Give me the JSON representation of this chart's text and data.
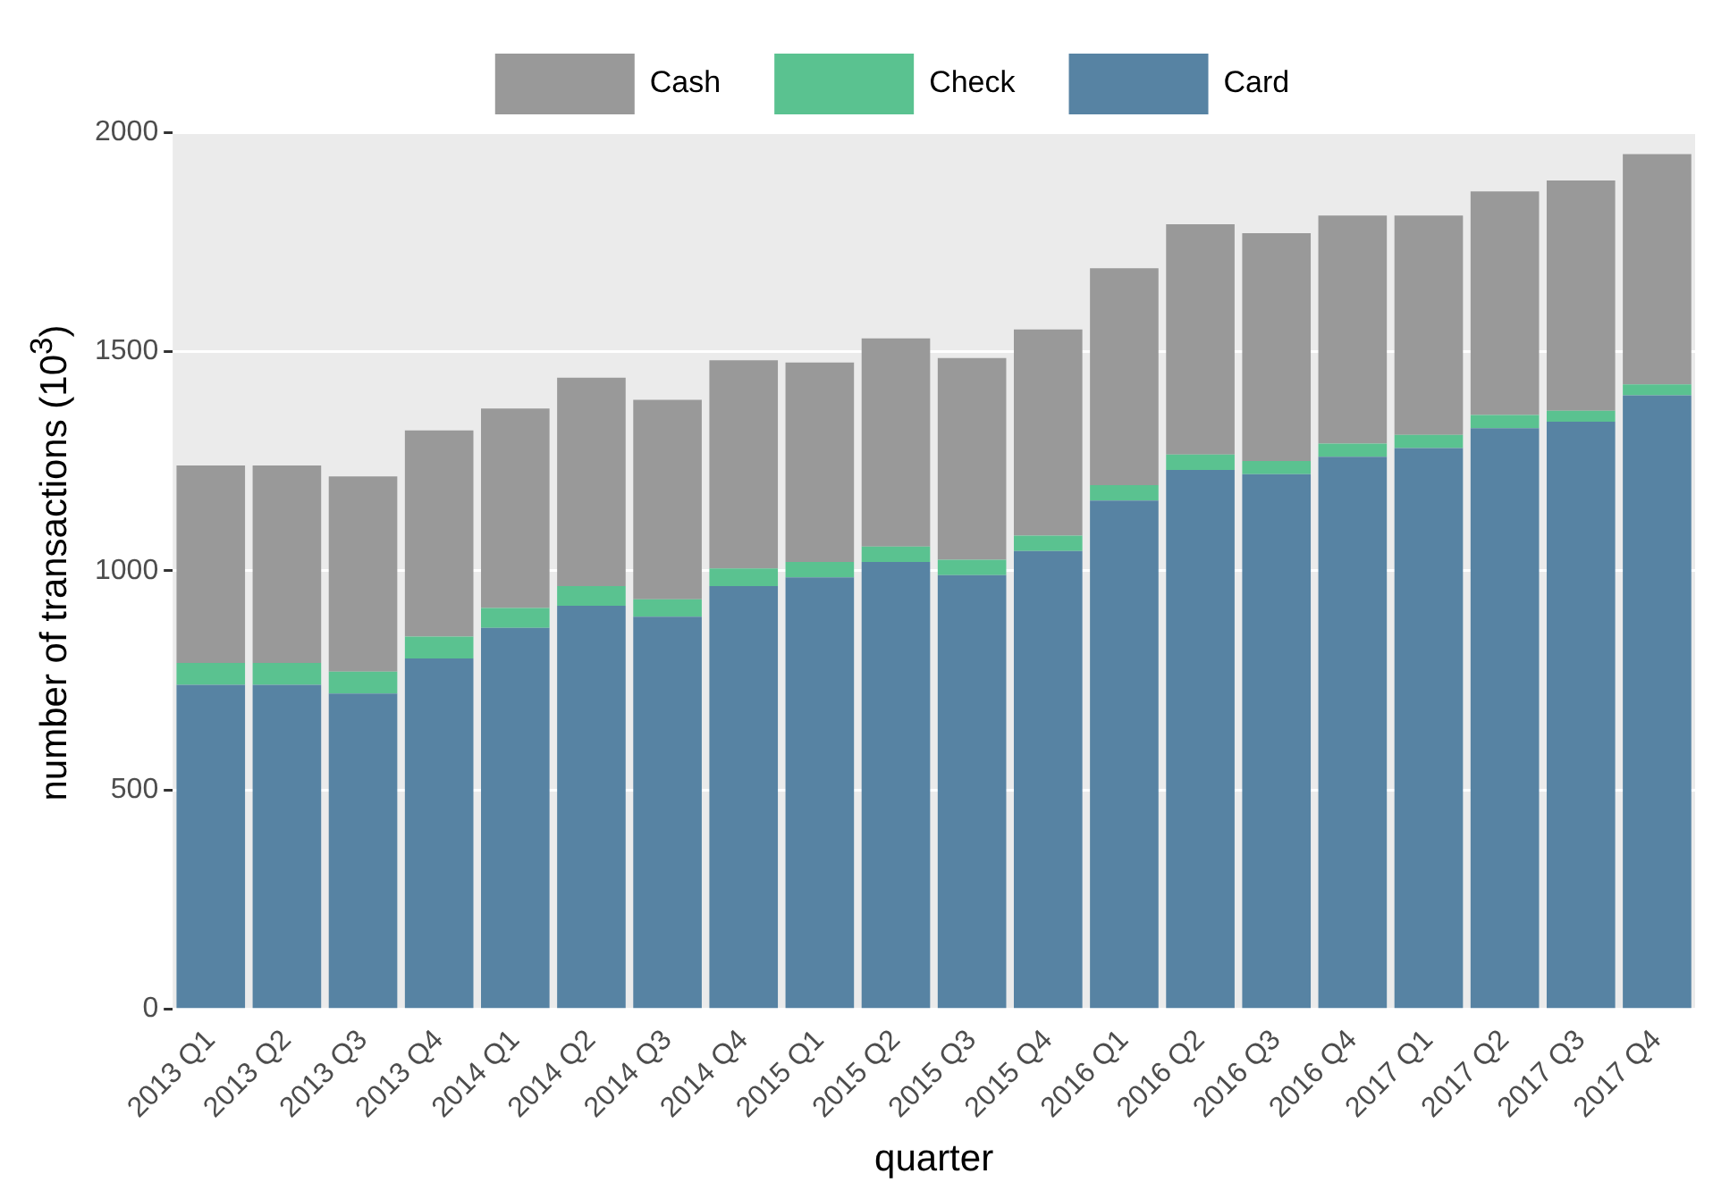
{
  "chart_data": {
    "type": "bar",
    "stacked": true,
    "xlabel": "quarter",
    "ylabel": "number of transactions (10$^{3}$)",
    "categories": [
      "2013 Q1",
      "2013 Q2",
      "2013 Q3",
      "2013 Q4",
      "2014 Q1",
      "2014 Q2",
      "2014 Q3",
      "2014 Q4",
      "2015 Q1",
      "2015 Q2",
      "2015 Q3",
      "2015 Q4",
      "2016 Q1",
      "2016 Q2",
      "2016 Q3",
      "2016 Q4",
      "2017 Q1",
      "2017 Q2",
      "2017 Q3",
      "2017 Q4"
    ],
    "series": [
      {
        "name": "Card",
        "color": "#5783a3",
        "values": [
          740,
          740,
          720,
          800,
          870,
          920,
          895,
          965,
          985,
          1020,
          990,
          1045,
          1160,
          1230,
          1220,
          1260,
          1280,
          1325,
          1340,
          1400
        ]
      },
      {
        "name": "Check",
        "color": "#5ac290",
        "values": [
          50,
          50,
          50,
          50,
          45,
          45,
          40,
          40,
          35,
          35,
          35,
          35,
          35,
          35,
          30,
          30,
          30,
          30,
          25,
          25
        ]
      },
      {
        "name": "Cash",
        "color": "#999999",
        "values": [
          450,
          450,
          445,
          470,
          455,
          475,
          455,
          475,
          455,
          475,
          460,
          470,
          495,
          525,
          520,
          520,
          500,
          510,
          525,
          525
        ]
      }
    ],
    "ylim": [
      0,
      2000
    ],
    "yticks": [
      0,
      500,
      1000,
      1500,
      2000
    ],
    "grid": "y",
    "legend": "top"
  }
}
